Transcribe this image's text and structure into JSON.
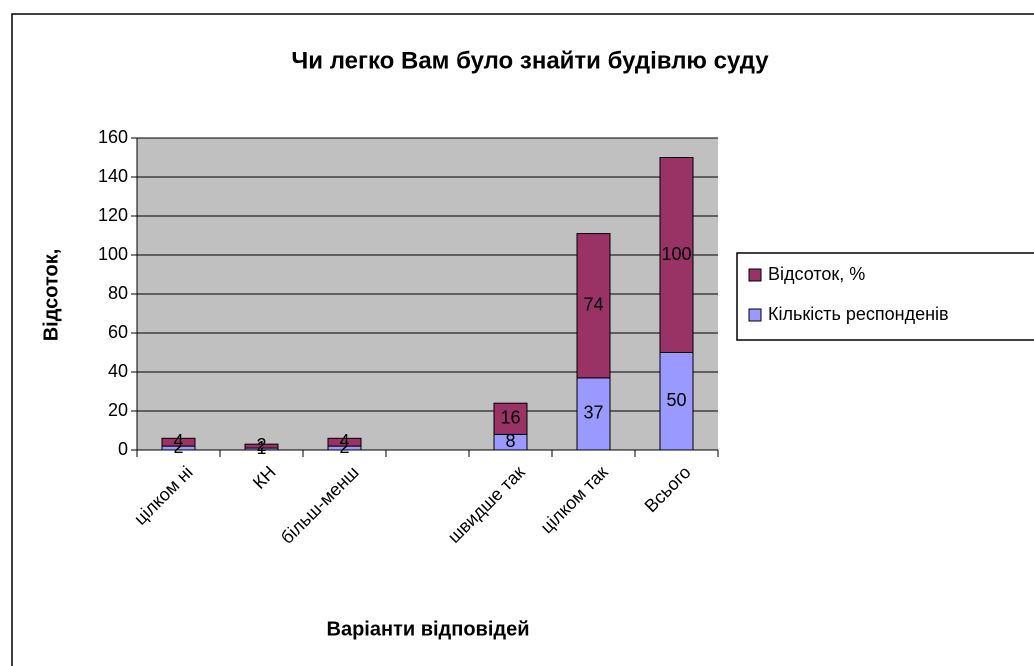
{
  "chart_data": {
    "type": "stacked_bar",
    "title": "Чи легко Вам було знайти будівлю суду",
    "x_label": "Варіанти відповідей",
    "y_label": "Відсоток,",
    "categories": [
      "цілком ні",
      "КН",
      "більш-менш",
      null,
      "швидше так",
      "цілком так",
      "Всього"
    ],
    "series": [
      {
        "name": "Кількість респонденів",
        "color": "#9999ff",
        "values": [
          2,
          1,
          2,
          null,
          8,
          37,
          50
        ]
      },
      {
        "name": "Відсоток, %",
        "color": "#993366",
        "values": [
          4,
          2,
          4,
          null,
          16,
          74,
          100
        ]
      }
    ],
    "ylim": [
      0,
      160
    ],
    "yticks": [
      0,
      20,
      40,
      60,
      80,
      100,
      120,
      140,
      160
    ],
    "grid": true,
    "legend": "right"
  }
}
